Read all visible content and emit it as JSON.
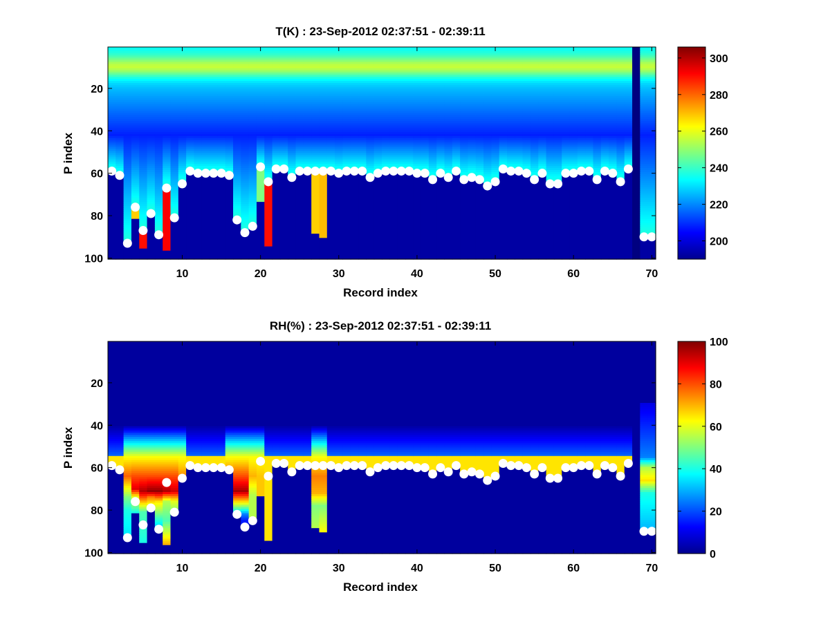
{
  "chart_data": [
    {
      "type": "heatmap",
      "title": "T(K) : 23-Sep-2012 02:37:51 - 02:39:11",
      "xlabel": "Record index",
      "ylabel": "P index",
      "xlim": [
        0.5,
        70.5
      ],
      "ylim": [
        100.5,
        0.5
      ],
      "y_reversed": true,
      "xticks": [
        10,
        20,
        30,
        40,
        50,
        60,
        70
      ],
      "yticks": [
        20,
        40,
        60,
        80,
        100
      ],
      "colorbar": {
        "min": 190,
        "max": 306,
        "ticks": [
          200,
          220,
          240,
          260,
          280,
          300
        ],
        "colormap": "jet"
      },
      "profile_model": {
        "peak_value": 256,
        "peak_level": 10,
        "peak_width": 5,
        "upper_value": 234,
        "mid_value": 208,
        "mid_level": 42,
        "mid_to_surface_value": 238
      },
      "surface_fill_value": 194,
      "surface_level": [
        59,
        61,
        93,
        76,
        87,
        79,
        89,
        67,
        81,
        65,
        59,
        60,
        60,
        60,
        60,
        61,
        82,
        88,
        85,
        57,
        64,
        58,
        58,
        62,
        59,
        59,
        59,
        59,
        59,
        60,
        59,
        59,
        59,
        62,
        60,
        59,
        59,
        59,
        59,
        60,
        60,
        63,
        60,
        62,
        59,
        63,
        62,
        63,
        66,
        64,
        58,
        59,
        59,
        60,
        63,
        60,
        65,
        65,
        60,
        60,
        59,
        59,
        63,
        59,
        60,
        64,
        58,
        45,
        90,
        90
      ],
      "data_extent": [
        59,
        61,
        93,
        81,
        95,
        79,
        89,
        96,
        81,
        65,
        59,
        60,
        60,
        60,
        60,
        61,
        82,
        88,
        85,
        73,
        94,
        58,
        58,
        62,
        59,
        59,
        88,
        90,
        59,
        60,
        59,
        59,
        59,
        62,
        60,
        59,
        59,
        59,
        59,
        60,
        60,
        63,
        60,
        62,
        59,
        63,
        62,
        63,
        66,
        64,
        58,
        59,
        59,
        60,
        63,
        60,
        65,
        65,
        60,
        60,
        59,
        59,
        63,
        59,
        60,
        64,
        58,
        45,
        90,
        90
      ],
      "near_surface_value": [
        232,
        236,
        284,
        268,
        290,
        282,
        278,
        292,
        248,
        244,
        238,
        238,
        238,
        238,
        238,
        240,
        266,
        278,
        276,
        248,
        290,
        236,
        236,
        236,
        236,
        236,
        268,
        270,
        236,
        236,
        236,
        236,
        236,
        236,
        236,
        236,
        236,
        236,
        236,
        236,
        236,
        236,
        236,
        236,
        236,
        236,
        236,
        236,
        236,
        236,
        236,
        236,
        236,
        236,
        236,
        236,
        236,
        236,
        236,
        236,
        236,
        236,
        236,
        236,
        236,
        236,
        236,
        190,
        286,
        286
      ],
      "marker_records": [
        1,
        2,
        3,
        4,
        5,
        6,
        7,
        8,
        9,
        10,
        11,
        12,
        13,
        14,
        15,
        16,
        17,
        18,
        19,
        20,
        21,
        22,
        23,
        24,
        25,
        26,
        27,
        28,
        29,
        30,
        31,
        32,
        33,
        34,
        35,
        36,
        37,
        38,
        39,
        40,
        41,
        42,
        43,
        44,
        45,
        46,
        47,
        48,
        49,
        50,
        51,
        52,
        53,
        54,
        55,
        56,
        57,
        58,
        59,
        60,
        61,
        62,
        63,
        64,
        65,
        66,
        67,
        69,
        70
      ],
      "marker_levels": [
        59,
        61,
        93,
        76,
        87,
        79,
        89,
        67,
        81,
        65,
        59,
        60,
        60,
        60,
        60,
        61,
        82,
        88,
        85,
        57,
        64,
        58,
        58,
        62,
        59,
        59,
        59,
        59,
        59,
        60,
        59,
        59,
        59,
        62,
        60,
        59,
        59,
        59,
        59,
        60,
        60,
        63,
        60,
        62,
        59,
        63,
        62,
        63,
        66,
        64,
        58,
        59,
        59,
        60,
        63,
        60,
        65,
        65,
        60,
        60,
        59,
        59,
        63,
        59,
        60,
        64,
        58,
        90,
        90
      ]
    },
    {
      "type": "heatmap",
      "title": "RH(%) : 23-Sep-2012 02:37:51 - 02:39:11",
      "xlabel": "Record index",
      "ylabel": "P index",
      "xlim": [
        0.5,
        70.5
      ],
      "ylim": [
        100.5,
        0.5
      ],
      "y_reversed": true,
      "xticks": [
        10,
        20,
        30,
        40,
        50,
        60,
        70
      ],
      "yticks": [
        20,
        40,
        60,
        80,
        100
      ],
      "colorbar": {
        "min": 0,
        "max": 100,
        "ticks": [
          0,
          20,
          40,
          60,
          80,
          100
        ],
        "colormap": "jet"
      },
      "profile_model": {
        "background_value": 3,
        "rise_start_level": 40,
        "band_start_level": 55,
        "band_value": 65,
        "rise_value": 20
      },
      "surface_fill_value": 3,
      "surface_level": [
        59,
        61,
        93,
        76,
        87,
        79,
        89,
        67,
        81,
        65,
        59,
        60,
        60,
        60,
        60,
        61,
        82,
        88,
        85,
        57,
        64,
        58,
        58,
        62,
        59,
        59,
        59,
        59,
        59,
        60,
        59,
        59,
        59,
        62,
        60,
        59,
        59,
        59,
        59,
        60,
        60,
        63,
        60,
        62,
        59,
        63,
        62,
        63,
        66,
        64,
        58,
        59,
        59,
        60,
        63,
        60,
        65,
        65,
        60,
        60,
        59,
        59,
        63,
        59,
        60,
        64,
        58,
        45,
        90,
        90
      ],
      "data_extent": [
        59,
        61,
        93,
        81,
        95,
        79,
        89,
        96,
        81,
        65,
        59,
        60,
        60,
        60,
        60,
        61,
        82,
        88,
        85,
        73,
        94,
        58,
        58,
        62,
        59,
        59,
        88,
        90,
        59,
        60,
        59,
        59,
        59,
        62,
        60,
        59,
        59,
        59,
        59,
        60,
        60,
        63,
        60,
        62,
        59,
        63,
        62,
        63,
        66,
        64,
        58,
        59,
        59,
        60,
        63,
        60,
        65,
        65,
        60,
        60,
        59,
        59,
        63,
        59,
        60,
        64,
        58,
        45,
        90,
        90
      ],
      "column_profiles": {
        "3": [
          [
            55,
            62
          ],
          [
            64,
            78
          ],
          [
            74,
            50
          ],
          [
            80,
            40
          ],
          [
            93,
            35
          ]
        ],
        "4": [
          [
            55,
            62
          ],
          [
            64,
            80
          ],
          [
            70,
            90
          ],
          [
            74,
            60
          ],
          [
            81,
            40
          ]
        ],
        "5": [
          [
            55,
            62
          ],
          [
            64,
            80
          ],
          [
            71,
            95
          ],
          [
            76,
            70
          ],
          [
            81,
            45
          ],
          [
            95,
            40
          ]
        ],
        "6": [
          [
            55,
            62
          ],
          [
            64,
            80
          ],
          [
            71,
            98
          ],
          [
            74,
            75
          ],
          [
            79,
            55
          ]
        ],
        "7": [
          [
            55,
            62
          ],
          [
            64,
            80
          ],
          [
            71,
            98
          ],
          [
            76,
            65
          ],
          [
            89,
            30
          ]
        ],
        "8": [
          [
            55,
            62
          ],
          [
            64,
            80
          ],
          [
            71,
            95
          ],
          [
            76,
            55
          ],
          [
            85,
            45
          ],
          [
            96,
            70
          ]
        ],
        "9": [
          [
            55,
            62
          ],
          [
            64,
            80
          ],
          [
            71,
            92
          ],
          [
            76,
            60
          ],
          [
            81,
            50
          ]
        ],
        "10": [
          [
            55,
            62
          ],
          [
            65,
            75
          ]
        ],
        "16": [
          [
            55,
            62
          ],
          [
            64,
            78
          ],
          [
            71,
            92
          ],
          [
            77,
            70
          ],
          [
            82,
            50
          ]
        ],
        "17": [
          [
            55,
            62
          ],
          [
            64,
            80
          ],
          [
            71,
            96
          ],
          [
            77,
            60
          ],
          [
            82,
            30
          ],
          [
            88,
            15
          ]
        ],
        "18": [
          [
            55,
            62
          ],
          [
            64,
            80
          ],
          [
            71,
            96
          ],
          [
            77,
            60
          ],
          [
            82,
            25
          ],
          [
            85,
            15
          ]
        ],
        "19": [
          [
            55,
            62
          ],
          [
            64,
            70
          ],
          [
            73,
            55
          ]
        ],
        "20": [
          [
            55,
            62
          ],
          [
            64,
            68
          ],
          [
            80,
            68
          ],
          [
            94,
            70
          ]
        ],
        "27": [
          [
            55,
            62
          ],
          [
            64,
            75
          ],
          [
            72,
            70
          ],
          [
            78,
            50
          ],
          [
            88,
            55
          ]
        ],
        "28": [
          [
            55,
            62
          ],
          [
            64,
            75
          ],
          [
            72,
            70
          ],
          [
            78,
            50
          ],
          [
            90,
            62
          ]
        ],
        "68": [
          [
            0,
            3
          ],
          [
            45,
            3
          ]
        ],
        "69": [
          [
            30,
            10
          ],
          [
            55,
            25
          ],
          [
            60,
            55
          ],
          [
            66,
            65
          ],
          [
            72,
            40
          ],
          [
            90,
            30
          ]
        ],
        "70": [
          [
            30,
            10
          ],
          [
            55,
            25
          ],
          [
            60,
            55
          ],
          [
            66,
            65
          ],
          [
            72,
            40
          ],
          [
            90,
            30
          ]
        ]
      },
      "marker_records": [
        1,
        2,
        3,
        4,
        5,
        6,
        7,
        8,
        9,
        10,
        11,
        12,
        13,
        14,
        15,
        16,
        17,
        18,
        19,
        20,
        21,
        22,
        23,
        24,
        25,
        26,
        27,
        28,
        29,
        30,
        31,
        32,
        33,
        34,
        35,
        36,
        37,
        38,
        39,
        40,
        41,
        42,
        43,
        44,
        45,
        46,
        47,
        48,
        49,
        50,
        51,
        52,
        53,
        54,
        55,
        56,
        57,
        58,
        59,
        60,
        61,
        62,
        63,
        64,
        65,
        66,
        67,
        69,
        70
      ],
      "marker_levels": [
        59,
        61,
        93,
        76,
        87,
        79,
        89,
        67,
        81,
        65,
        59,
        60,
        60,
        60,
        60,
        61,
        82,
        88,
        85,
        57,
        64,
        58,
        58,
        62,
        59,
        59,
        59,
        59,
        59,
        60,
        59,
        59,
        59,
        62,
        60,
        59,
        59,
        59,
        59,
        60,
        60,
        63,
        60,
        62,
        59,
        63,
        62,
        63,
        66,
        64,
        58,
        59,
        59,
        60,
        63,
        60,
        65,
        65,
        60,
        60,
        59,
        59,
        63,
        59,
        60,
        64,
        58,
        90,
        90
      ]
    }
  ]
}
